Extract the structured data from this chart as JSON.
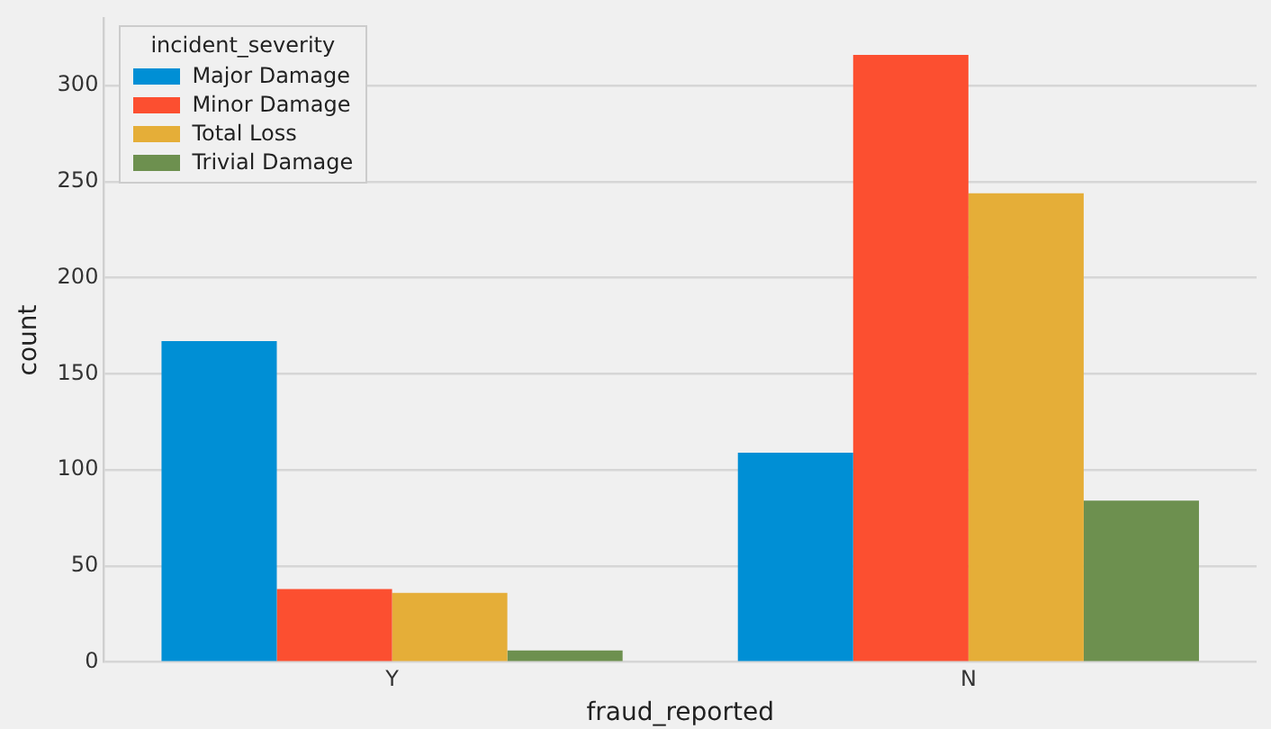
{
  "chart_data": {
    "type": "bar",
    "xlabel": "fraud_reported",
    "ylabel": "count",
    "legend_title": "incident_severity",
    "categories": [
      "Y",
      "N"
    ],
    "series": [
      {
        "name": "Major Damage",
        "color": "#008fd5",
        "values": [
          167,
          109
        ]
      },
      {
        "name": "Minor Damage",
        "color": "#fc4f30",
        "values": [
          38,
          316
        ]
      },
      {
        "name": "Total Loss",
        "color": "#e5ae38",
        "values": [
          36,
          244
        ]
      },
      {
        "name": "Trivial Damage",
        "color": "#6d904f",
        "values": [
          6,
          84
        ]
      }
    ],
    "ylim": [
      0,
      335
    ],
    "yticks": [
      0,
      50,
      100,
      150,
      200,
      250,
      300
    ],
    "grid": "y",
    "legend": "top left"
  }
}
